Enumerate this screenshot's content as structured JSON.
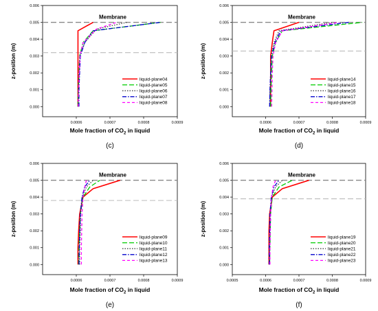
{
  "chart_data": [
    {
      "type": "line",
      "panel_label": "(c)",
      "xlabel_prefix": "Mole fraction of CO",
      "xlabel_sub": "2",
      "xlabel_suffix": " in liquid",
      "ylabel": "z-position (m)",
      "xlim": [
        0.0005,
        0.0009
      ],
      "ylim": [
        -0.0006,
        0.006
      ],
      "x_ticks": [
        "0.0006",
        "0.0007",
        "0.0008",
        "0.0009"
      ],
      "y_ticks": [
        "0.000",
        "0.001",
        "0.002",
        "0.003",
        "0.004",
        "0.005",
        "0.006"
      ],
      "annotation": "Membrane",
      "reference_lines": [
        {
          "y": 0.005,
          "style": "dashed"
        },
        {
          "y": 0.0032,
          "style": "dashed"
        }
      ],
      "legend_position": "bottom-right",
      "series": [
        {
          "name": "liquid-plane04",
          "color": "#ff0000",
          "dash": "solid",
          "points": [
            [
              0.000605,
              0.0
            ],
            [
              0.000605,
              0.001
            ],
            [
              0.000605,
              0.002
            ],
            [
              0.000605,
              0.003
            ],
            [
              0.000605,
              0.0045
            ],
            [
              0.00065,
              0.005
            ]
          ]
        },
        {
          "name": "liquid-plane05",
          "color": "#00cc00",
          "dash": "long-dash",
          "points": [
            [
              0.000605,
              0.0
            ],
            [
              0.000606,
              0.001
            ],
            [
              0.000608,
              0.002
            ],
            [
              0.00061,
              0.003
            ],
            [
              0.00062,
              0.0038
            ],
            [
              0.00065,
              0.0045
            ],
            [
              0.00085,
              0.005
            ]
          ]
        },
        {
          "name": "liquid-plane06",
          "color": "#404040",
          "dash": "dotted",
          "points": [
            [
              0.000605,
              0.0
            ],
            [
              0.000606,
              0.001
            ],
            [
              0.000608,
              0.002
            ],
            [
              0.00061,
              0.003
            ],
            [
              0.000625,
              0.0038
            ],
            [
              0.00066,
              0.0046
            ],
            [
              0.00075,
              0.005
            ]
          ]
        },
        {
          "name": "liquid-plane07",
          "color": "#0000cc",
          "dash": "dash-dot",
          "points": [
            [
              0.000608,
              0.0
            ],
            [
              0.000608,
              0.001
            ],
            [
              0.00061,
              0.002
            ],
            [
              0.000612,
              0.003
            ],
            [
              0.000625,
              0.0038
            ],
            [
              0.00065,
              0.0045
            ],
            [
              0.00085,
              0.005
            ]
          ]
        },
        {
          "name": "liquid-plane08",
          "color": "#ff00ff",
          "dash": "dashed",
          "points": [
            [
              0.000606,
              0.0
            ],
            [
              0.000607,
              0.001
            ],
            [
              0.000609,
              0.002
            ],
            [
              0.000611,
              0.003
            ],
            [
              0.00062,
              0.0038
            ],
            [
              0.00066,
              0.0046
            ],
            [
              0.00072,
              0.005
            ]
          ]
        }
      ]
    },
    {
      "type": "line",
      "panel_label": "(d)",
      "xlabel_prefix": "Mole fraction of CO",
      "xlabel_sub": "2",
      "xlabel_suffix": " in liquid",
      "ylabel": "z-position (m)",
      "xlim": [
        0.0005,
        0.0009
      ],
      "ylim": [
        -0.0006,
        0.006
      ],
      "x_ticks": [
        "0.0006",
        "0.0007",
        "0.0008",
        "0.0009"
      ],
      "y_ticks": [
        "0.000",
        "0.001",
        "0.002",
        "0.003",
        "0.004",
        "0.005",
        "0.006"
      ],
      "annotation": "Membrane",
      "reference_lines": [
        {
          "y": 0.005,
          "style": "dashed"
        },
        {
          "y": 0.0033,
          "style": "dashed"
        }
      ],
      "legend_position": "bottom-right",
      "series": [
        {
          "name": "liquid-plane14",
          "color": "#ff0000",
          "dash": "solid",
          "points": [
            [
              0.000615,
              0.0
            ],
            [
              0.000615,
              0.001
            ],
            [
              0.000615,
              0.002
            ],
            [
              0.000615,
              0.003
            ],
            [
              0.00062,
              0.0038
            ],
            [
              0.000625,
              0.0045
            ],
            [
              0.0007,
              0.005
            ]
          ]
        },
        {
          "name": "liquid-plane15",
          "color": "#00cc00",
          "dash": "long-dash",
          "points": [
            [
              0.000615,
              0.0
            ],
            [
              0.000616,
              0.001
            ],
            [
              0.000618,
              0.002
            ],
            [
              0.00062,
              0.003
            ],
            [
              0.00063,
              0.0038
            ],
            [
              0.00065,
              0.0045
            ],
            [
              0.00089,
              0.005
            ]
          ]
        },
        {
          "name": "liquid-plane16",
          "color": "#404040",
          "dash": "dotted",
          "points": [
            [
              0.000612,
              0.0
            ],
            [
              0.000613,
              0.001
            ],
            [
              0.000615,
              0.002
            ],
            [
              0.000617,
              0.003
            ],
            [
              0.000625,
              0.0038
            ],
            [
              0.00064,
              0.0045
            ],
            [
              0.0008,
              0.005
            ]
          ]
        },
        {
          "name": "liquid-plane17",
          "color": "#0000cc",
          "dash": "dash-dot",
          "points": [
            [
              0.000612,
              0.0
            ],
            [
              0.000613,
              0.001
            ],
            [
              0.000615,
              0.002
            ],
            [
              0.000617,
              0.003
            ],
            [
              0.000628,
              0.0038
            ],
            [
              0.000645,
              0.0045
            ],
            [
              0.00085,
              0.005
            ]
          ]
        },
        {
          "name": "liquid-plane18",
          "color": "#ff00ff",
          "dash": "dashed",
          "points": [
            [
              0.000618,
              0.0
            ],
            [
              0.000619,
              0.001
            ],
            [
              0.00062,
              0.002
            ],
            [
              0.000622,
              0.003
            ],
            [
              0.00063,
              0.0038
            ],
            [
              0.00065,
              0.0045
            ],
            [
              0.00082,
              0.005
            ]
          ]
        }
      ]
    },
    {
      "type": "line",
      "panel_label": "(e)",
      "xlabel_prefix": "Mole fraction of CO",
      "xlabel_sub": "2",
      "xlabel_suffix": " in liquid",
      "ylabel": "z-position (m)",
      "xlim": [
        0.0005,
        0.0009
      ],
      "ylim": [
        -0.0006,
        0.006
      ],
      "x_ticks": [
        "0.0006",
        "0.0007",
        "0.0008",
        "0.0009"
      ],
      "y_ticks": [
        "0.000",
        "0.001",
        "0.002",
        "0.003",
        "0.004",
        "0.005",
        "0.006"
      ],
      "annotation": "Membrane",
      "reference_lines": [
        {
          "y": 0.005,
          "style": "dashed"
        },
        {
          "y": 0.0038,
          "style": "dashed"
        }
      ],
      "legend_position": "bottom-right",
      "series": [
        {
          "name": "liquid-plane09",
          "color": "#ff0000",
          "dash": "solid",
          "points": [
            [
              0.000605,
              0.0
            ],
            [
              0.000605,
              0.001
            ],
            [
              0.000607,
              0.002
            ],
            [
              0.00061,
              0.003
            ],
            [
              0.00062,
              0.004
            ],
            [
              0.00065,
              0.0045
            ],
            [
              0.00073,
              0.005
            ]
          ]
        },
        {
          "name": "liquid-plane10",
          "color": "#00cc00",
          "dash": "long-dash",
          "points": [
            [
              0.000607,
              0.0
            ],
            [
              0.000608,
              0.001
            ],
            [
              0.00061,
              0.002
            ],
            [
              0.000612,
              0.003
            ],
            [
              0.00062,
              0.004
            ],
            [
              0.00064,
              0.0046
            ],
            [
              0.00067,
              0.005
            ]
          ]
        },
        {
          "name": "liquid-plane11",
          "color": "#404040",
          "dash": "dotted",
          "points": [
            [
              0.00061,
              0.0
            ],
            [
              0.00061,
              0.001
            ],
            [
              0.000612,
              0.002
            ],
            [
              0.000613,
              0.003
            ],
            [
              0.000618,
              0.004
            ],
            [
              0.00063,
              0.0046
            ],
            [
              0.00065,
              0.005
            ]
          ]
        },
        {
          "name": "liquid-plane12",
          "color": "#0000cc",
          "dash": "dash-dot",
          "points": [
            [
              0.000608,
              0.0
            ],
            [
              0.000609,
              0.001
            ],
            [
              0.00061,
              0.002
            ],
            [
              0.000612,
              0.003
            ],
            [
              0.000617,
              0.004
            ],
            [
              0.000625,
              0.0046
            ],
            [
              0.00064,
              0.005
            ]
          ]
        },
        {
          "name": "liquid-plane13",
          "color": "#ff00ff",
          "dash": "dashed",
          "points": [
            [
              0.000615,
              0.0
            ],
            [
              0.000615,
              0.001
            ],
            [
              0.000616,
              0.002
            ],
            [
              0.000617,
              0.003
            ],
            [
              0.00062,
              0.004
            ],
            [
              0.000625,
              0.0046
            ],
            [
              0.00063,
              0.005
            ]
          ]
        }
      ]
    },
    {
      "type": "line",
      "panel_label": "(f)",
      "xlabel_prefix": "Mole fraction of CO",
      "xlabel_sub": "2",
      "xlabel_suffix": " in liquid",
      "ylabel": "z-position (m)",
      "xlim": [
        0.0005,
        0.0009
      ],
      "ylim": [
        -0.0006,
        0.006
      ],
      "x_ticks": [
        "0.0005",
        "0.0006",
        "0.0007",
        "0.0008",
        "0.0009"
      ],
      "y_ticks": [
        "0.000",
        "0.001",
        "0.002",
        "0.003",
        "0.004",
        "0.005",
        "0.006"
      ],
      "annotation": "Membrane",
      "reference_lines": [
        {
          "y": 0.005,
          "style": "dashed"
        },
        {
          "y": 0.0039,
          "style": "dashed"
        }
      ],
      "legend_position": "bottom-right",
      "series": [
        {
          "name": "liquid-plane19",
          "color": "#ff0000",
          "dash": "solid",
          "points": [
            [
              0.00061,
              0.0
            ],
            [
              0.00061,
              0.001
            ],
            [
              0.00061,
              0.002
            ],
            [
              0.000612,
              0.003
            ],
            [
              0.00062,
              0.004
            ],
            [
              0.00065,
              0.0045
            ],
            [
              0.00073,
              0.005
            ]
          ]
        },
        {
          "name": "liquid-plane20",
          "color": "#00cc00",
          "dash": "long-dash",
          "points": [
            [
              0.000612,
              0.0
            ],
            [
              0.000613,
              0.001
            ],
            [
              0.000614,
              0.002
            ],
            [
              0.000615,
              0.003
            ],
            [
              0.00062,
              0.004
            ],
            [
              0.00064,
              0.0046
            ],
            [
              0.00068,
              0.005
            ]
          ]
        },
        {
          "name": "liquid-plane21",
          "color": "#404040",
          "dash": "dotted",
          "points": [
            [
              0.000612,
              0.0
            ],
            [
              0.000612,
              0.001
            ],
            [
              0.000613,
              0.002
            ],
            [
              0.000614,
              0.003
            ],
            [
              0.000618,
              0.004
            ],
            [
              0.00063,
              0.0046
            ],
            [
              0.00065,
              0.005
            ]
          ]
        },
        {
          "name": "liquid-plane22",
          "color": "#0000cc",
          "dash": "dash-dot",
          "points": [
            [
              0.000611,
              0.0
            ],
            [
              0.000611,
              0.001
            ],
            [
              0.000612,
              0.002
            ],
            [
              0.000613,
              0.003
            ],
            [
              0.000617,
              0.004
            ],
            [
              0.000625,
              0.0046
            ],
            [
              0.00064,
              0.005
            ]
          ]
        },
        {
          "name": "liquid-plane23",
          "color": "#ff00ff",
          "dash": "dashed",
          "points": [
            [
              0.000613,
              0.0
            ],
            [
              0.000613,
              0.001
            ],
            [
              0.000614,
              0.002
            ],
            [
              0.000615,
              0.003
            ],
            [
              0.000618,
              0.004
            ],
            [
              0.000622,
              0.0046
            ],
            [
              0.00063,
              0.005
            ]
          ]
        }
      ]
    }
  ]
}
